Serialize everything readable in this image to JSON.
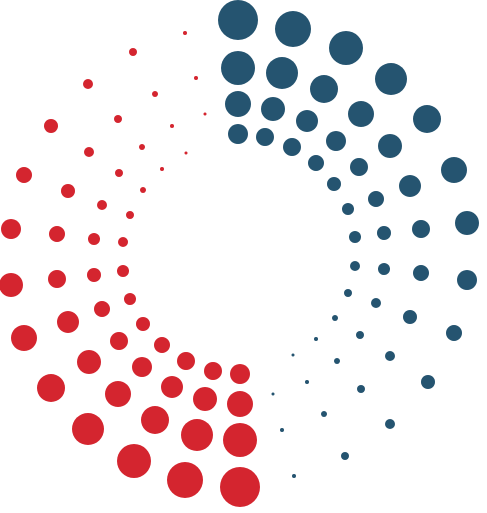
{
  "logo": {
    "icon": "dotted-spiral-ring-logo",
    "colors": {
      "red": "#d4252f",
      "blue": "#255470"
    }
  }
}
